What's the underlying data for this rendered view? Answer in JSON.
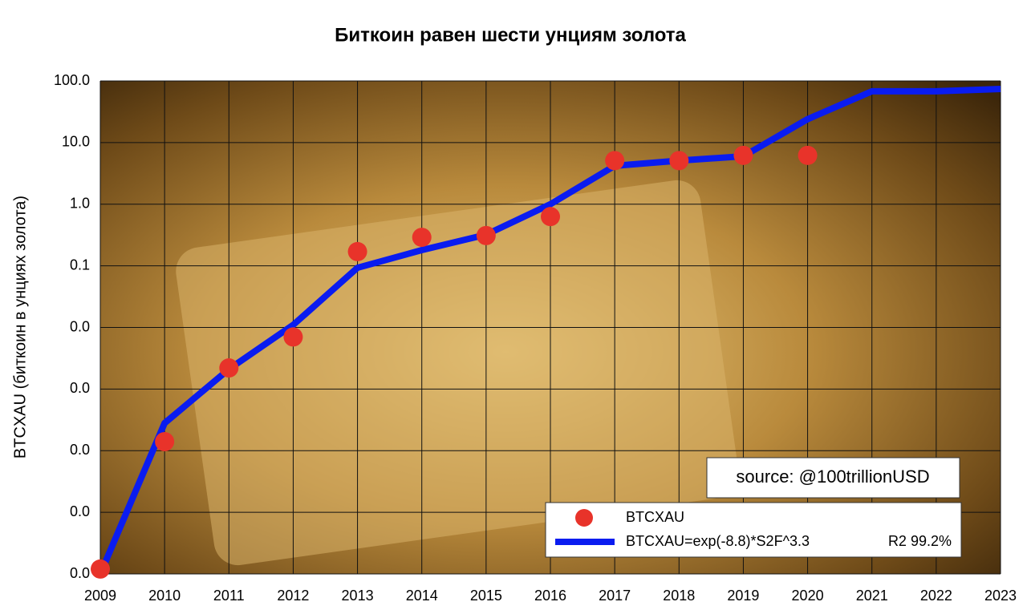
{
  "chart_data": {
    "type": "line",
    "title": "Биткоин равен шести унциям золота",
    "y_label": "BTCXAU (биткоин в унциях золота)",
    "source": "source: @100trillionUSD",
    "r2_label": "R2 99.2%",
    "y_log": true,
    "grid": true,
    "xlim": [
      2009,
      2023
    ],
    "xticks": [
      2009,
      2010,
      2011,
      2012,
      2013,
      2014,
      2015,
      2016,
      2017,
      2018,
      2019,
      2020,
      2021,
      2022,
      2023
    ],
    "ylim": [
      1e-06,
      100
    ],
    "yticks": [
      {
        "value": 1e-06,
        "label": "0.0"
      },
      {
        "value": 1e-05,
        "label": "0.0"
      },
      {
        "value": 0.0001,
        "label": "0.0"
      },
      {
        "value": 0.001,
        "label": "0.0"
      },
      {
        "value": 0.01,
        "label": "0.0"
      },
      {
        "value": 0.1,
        "label": "0.1"
      },
      {
        "value": 1,
        "label": "1.0"
      },
      {
        "value": 10,
        "label": "10.0"
      },
      {
        "value": 100,
        "label": "100.0"
      }
    ],
    "series": [
      {
        "name": "BTCXAU",
        "color": "#e8332a",
        "mode": "scatter",
        "x": [
          2009,
          2010,
          2011,
          2012,
          2013,
          2014,
          2015,
          2016,
          2017,
          2018,
          2019,
          2020
        ],
        "values": [
          1.2e-06,
          0.00014,
          0.0022,
          0.007,
          0.17,
          0.29,
          0.31,
          0.63,
          5.1,
          5.1,
          6.2,
          6.2
        ]
      },
      {
        "name": "BTCXAU=exp(-8.8)*S2F^3.3",
        "color": "#0a1cf0",
        "mode": "line",
        "x": [
          2009,
          2010,
          2011,
          2012,
          2013,
          2014,
          2015,
          2016,
          2017,
          2018,
          2019,
          2020,
          2021,
          2022,
          2023
        ],
        "values": [
          1e-06,
          0.00028,
          0.0021,
          0.011,
          0.093,
          0.18,
          0.32,
          1.0,
          4.2,
          5.1,
          6.0,
          24,
          68,
          68,
          74
        ]
      }
    ],
    "legend": "lower right"
  }
}
